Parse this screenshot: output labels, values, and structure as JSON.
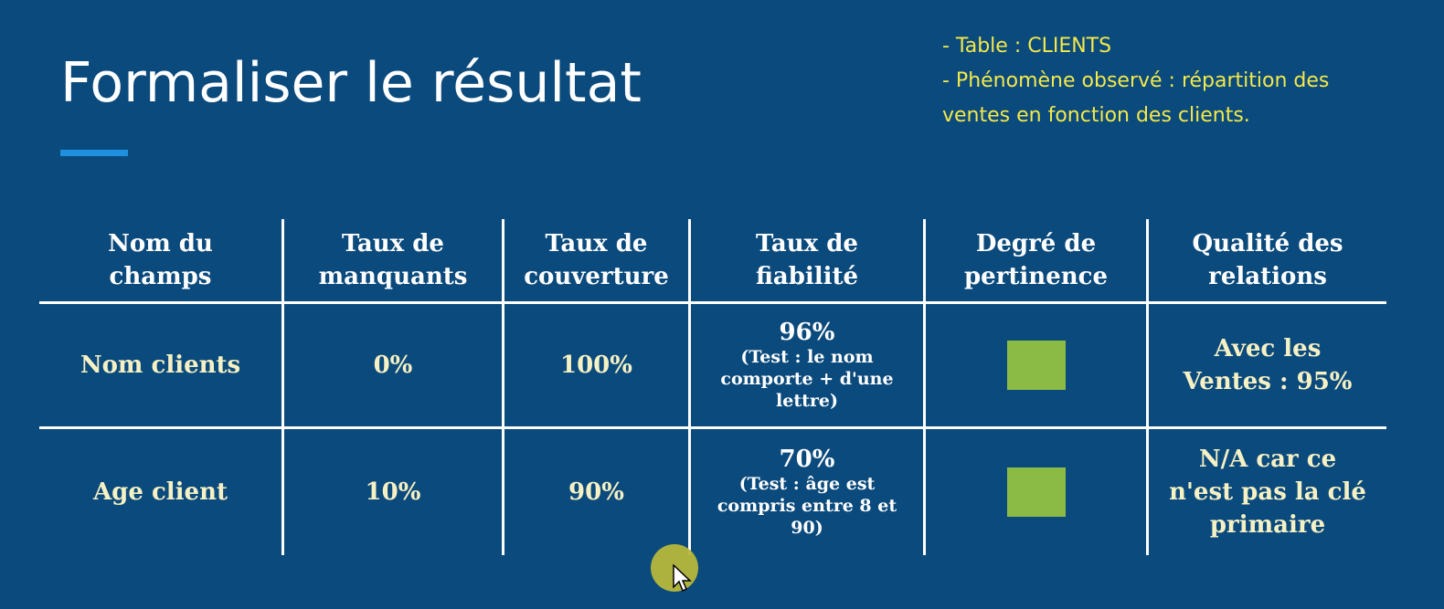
{
  "slide": {
    "title": "Formaliser le résultat",
    "notes": [
      "- Table : CLIENTS",
      "- Phénomène observé : répartition des",
      "ventes en fonction des clients."
    ]
  },
  "table": {
    "headers": [
      [
        "Nom du",
        "champs"
      ],
      [
        "Taux de",
        "manquants"
      ],
      [
        "Taux de",
        "couverture"
      ],
      [
        "Taux de",
        "fiabilité"
      ],
      [
        "Degré de",
        "pertinence"
      ],
      [
        "Qualité des",
        "relations"
      ]
    ],
    "rows": [
      {
        "field": "Nom clients",
        "missing": "0%",
        "coverage": "100%",
        "reliability": "96%",
        "reliability_note": [
          "(Test : le nom",
          "comporte + d'une",
          "lettre)"
        ],
        "relevance_color": "#8cbb45",
        "relations": [
          "Avec les",
          "Ventes : 95%"
        ]
      },
      {
        "field": "Age client",
        "missing": "10%",
        "coverage": "90%",
        "reliability": "70%",
        "reliability_note": [
          "(Test : âge est",
          "compris entre 8 et",
          "90)"
        ],
        "relevance_color": "#8cbb45",
        "relations": [
          "N/A car ce",
          "n'est pas la clé",
          "primaire"
        ]
      }
    ]
  },
  "colors": {
    "background": "#0b4a7c",
    "accent": "#1f8fe0",
    "notes_text": "#f3e94a",
    "relevance_green": "#8cbb45"
  },
  "icons": [
    "cursor-icon"
  ]
}
